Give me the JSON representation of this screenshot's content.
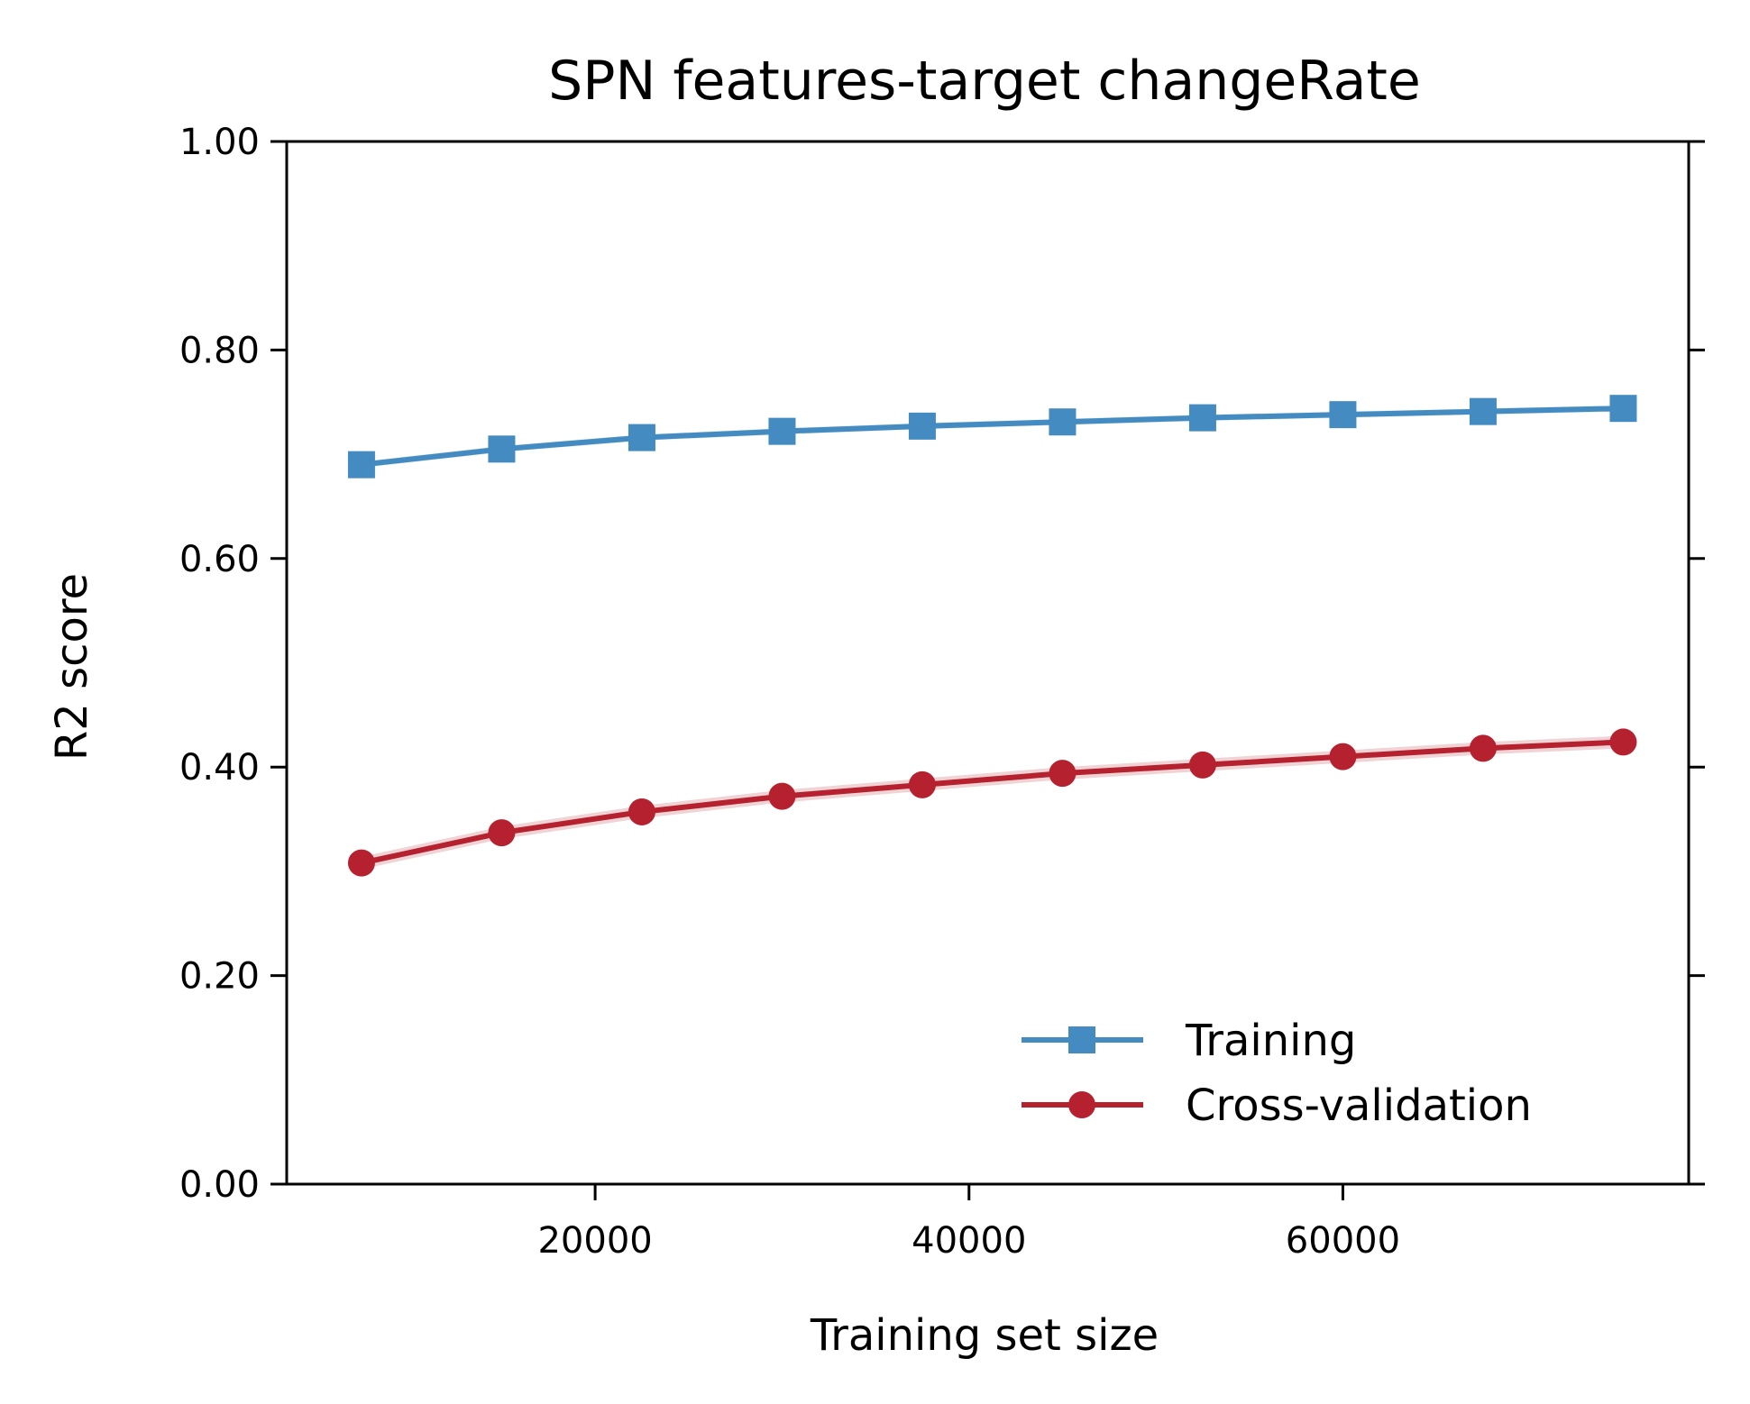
{
  "chart_data": {
    "type": "line",
    "title": "SPN features-target changeRate",
    "xlabel": "Training set size",
    "ylabel": "R2 score",
    "xlim": [
      3500,
      78500
    ],
    "ylim": [
      0.0,
      1.0
    ],
    "xticks": [
      20000,
      40000,
      60000
    ],
    "xtick_labels": [
      "20000",
      "40000",
      "60000"
    ],
    "yticks": [
      0.0,
      0.2,
      0.4,
      0.6,
      0.8,
      1.0
    ],
    "ytick_labels": [
      "0.00",
      "0.20",
      "0.40",
      "0.60",
      "0.80",
      "1.00"
    ],
    "grid": false,
    "legend_position": "lower-right",
    "x": [
      7500,
      15000,
      22500,
      30000,
      37500,
      45000,
      52500,
      60000,
      67500,
      75000
    ],
    "series": [
      {
        "name": "Training",
        "color": "#438bc0",
        "marker": "square",
        "values": [
          0.69,
          0.705,
          0.716,
          0.722,
          0.727,
          0.731,
          0.735,
          0.738,
          0.741,
          0.744
        ],
        "band": [
          0.003,
          0.003,
          0.003,
          0.003,
          0.003,
          0.003,
          0.003,
          0.003,
          0.003,
          0.003
        ]
      },
      {
        "name": "Cross-validation",
        "color": "#b6212f",
        "marker": "circle",
        "values": [
          0.308,
          0.337,
          0.357,
          0.372,
          0.383,
          0.394,
          0.402,
          0.41,
          0.418,
          0.424
        ],
        "band": [
          0.006,
          0.006,
          0.006,
          0.006,
          0.006,
          0.006,
          0.006,
          0.006,
          0.006,
          0.006
        ]
      }
    ]
  }
}
